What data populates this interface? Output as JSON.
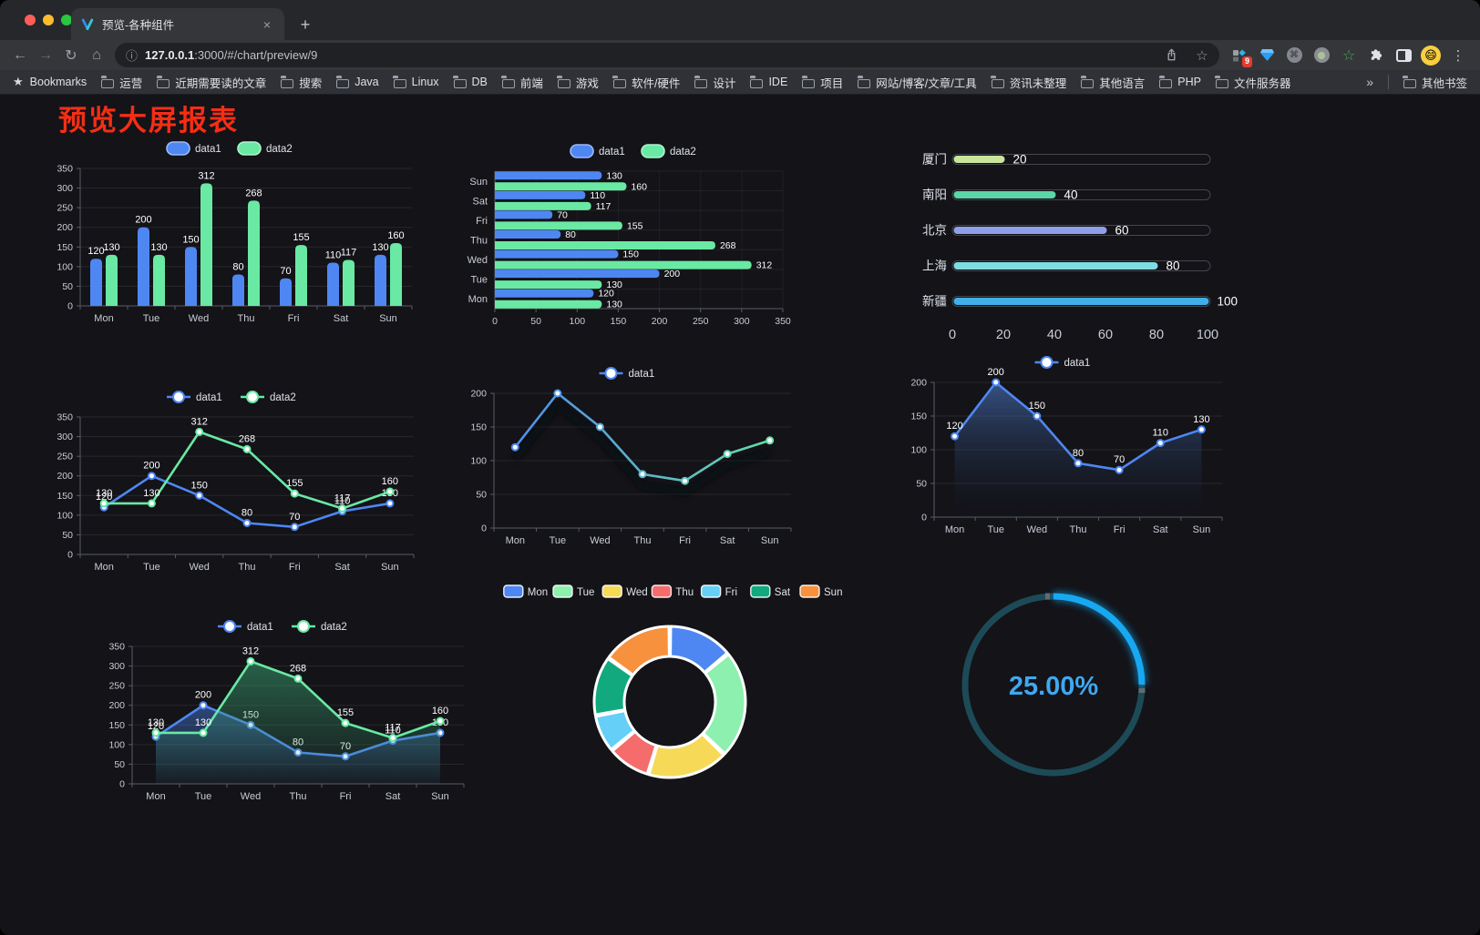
{
  "browser": {
    "traffic_lights": {
      "close": "#ff5f57",
      "minimize": "#febc2e",
      "zoom": "#28c840"
    },
    "tab": {
      "title": "预览-各种组件"
    },
    "icons": {
      "back": "←",
      "forward": "→",
      "reload": "↻",
      "home": "⌂",
      "info": "ⓘ",
      "star": "☆",
      "kebab": "⋮",
      "close": "×",
      "new_tab": "+",
      "overflow": "»",
      "bookmark_star": "★",
      "command": "⌘",
      "green_star": "☆",
      "avatar_emoji": "😄"
    },
    "nav": {
      "url_host": "127.0.0.1",
      "url_rest": ":3000/#/chart/preview/9"
    },
    "actions": {
      "extension_badge": "9"
    },
    "bookmarks": {
      "label": "Bookmarks",
      "folders": [
        "运营",
        "近期需要读的文章",
        "搜索",
        "Java",
        "Linux",
        "DB",
        "前端",
        "游戏",
        "软件/硬件",
        "设计",
        "IDE",
        "项目",
        "网站/博客/文章/工具",
        "资讯未整理",
        "其他语言",
        "PHP",
        "文件服务器"
      ],
      "other": "其他书签"
    }
  },
  "page": {
    "title": "预览大屏报表",
    "title_color": "#F52E14",
    "background": "#131318"
  },
  "theme": {
    "data1_color": "#4E87F2",
    "data1_border": "#9BB9F8",
    "data2_color": "#69E9A3",
    "data2_border": "#ACF4CD",
    "axis_line": "#5a5d66",
    "axis_label": "#c9cdd6",
    "grid_line": "rgba(255,255,255,0.09)",
    "value_label": "#ffffff"
  },
  "chart_data": [
    {
      "id": "bar-vertical",
      "type": "bar",
      "legend": [
        "data1",
        "data2"
      ],
      "categories": [
        "Mon",
        "Tue",
        "Wed",
        "Thu",
        "Fri",
        "Sat",
        "Sun"
      ],
      "series": [
        {
          "name": "data1",
          "color": "#4E87F2",
          "border": "#9BB9F8",
          "values": [
            120,
            200,
            150,
            80,
            70,
            110,
            130
          ]
        },
        {
          "name": "data2",
          "color": "#69E9A3",
          "border": "#ACF4CD",
          "values": [
            130,
            130,
            312,
            268,
            155,
            117,
            160
          ]
        }
      ],
      "ylim": [
        0,
        350
      ],
      "yticks": [
        0,
        50,
        100,
        150,
        200,
        250,
        300,
        350
      ],
      "value_labels": true
    },
    {
      "id": "bar-horizontal",
      "type": "bar-horizontal",
      "legend": [
        "data1",
        "data2"
      ],
      "categories": [
        "Mon",
        "Tue",
        "Wed",
        "Thu",
        "Fri",
        "Sat",
        "Sun"
      ],
      "series": [
        {
          "name": "data1",
          "color": "#4E87F2",
          "border": "#9BB9F8",
          "values": [
            120,
            200,
            150,
            80,
            70,
            110,
            130
          ]
        },
        {
          "name": "data2",
          "color": "#69E9A3",
          "border": "#ACF4CD",
          "values": [
            130,
            130,
            312,
            268,
            155,
            117,
            160
          ]
        }
      ],
      "xlim": [
        0,
        350
      ],
      "xticks": [
        0,
        50,
        100,
        150,
        200,
        250,
        300,
        350
      ],
      "value_labels": true
    },
    {
      "id": "progress-bars",
      "type": "progress",
      "categories": [
        "厦门",
        "南阳",
        "北京",
        "上海",
        "新疆"
      ],
      "values": [
        20,
        40,
        60,
        80,
        100
      ],
      "colors": [
        "#C9E59B",
        "#5BD6A7",
        "#8F9FE8",
        "#7EDDE3",
        "#41AEE8"
      ],
      "xlim": [
        0,
        100
      ],
      "xticks": [
        0,
        20,
        40,
        60,
        80,
        100
      ]
    },
    {
      "id": "line-two-series",
      "type": "line",
      "legend": [
        "data1",
        "data2"
      ],
      "categories": [
        "Mon",
        "Tue",
        "Wed",
        "Thu",
        "Fri",
        "Sat",
        "Sun"
      ],
      "series": [
        {
          "name": "data1",
          "color": "#4E87F2",
          "values": [
            120,
            200,
            150,
            80,
            70,
            110,
            130
          ]
        },
        {
          "name": "data2",
          "color": "#69E9A3",
          "values": [
            130,
            130,
            312,
            268,
            155,
            117,
            160
          ]
        }
      ],
      "ylim": [
        0,
        350
      ],
      "yticks": [
        0,
        50,
        100,
        150,
        200,
        250,
        300,
        350
      ],
      "value_labels": true,
      "area": false
    },
    {
      "id": "line-gradient",
      "type": "line-gradient",
      "legend": [
        "data1"
      ],
      "categories": [
        "Mon",
        "Tue",
        "Wed",
        "Thu",
        "Fri",
        "Sat",
        "Sun"
      ],
      "series": [
        {
          "name": "data1",
          "values": [
            120,
            200,
            150,
            80,
            70,
            110,
            130
          ]
        }
      ],
      "gradient": [
        "#4E87F2",
        "#67E0A3"
      ],
      "ylim": [
        0,
        200
      ],
      "yticks": [
        0,
        50,
        100,
        150,
        200
      ],
      "value_labels": false,
      "shadow": true
    },
    {
      "id": "line-area-single",
      "type": "line",
      "legend": [
        "data1"
      ],
      "categories": [
        "Mon",
        "Tue",
        "Wed",
        "Thu",
        "Fri",
        "Sat",
        "Sun"
      ],
      "series": [
        {
          "name": "data1",
          "color": "#4E87F2",
          "fill": [
            "rgba(84,134,222,0.55)",
            "rgba(20,26,40,0.05)"
          ],
          "values": [
            120,
            200,
            150,
            80,
            70,
            110,
            130
          ]
        }
      ],
      "ylim": [
        0,
        200
      ],
      "yticks": [
        0,
        50,
        100,
        150,
        200
      ],
      "value_labels": true,
      "area": true
    },
    {
      "id": "line-area-two",
      "type": "line",
      "legend": [
        "data1",
        "data2"
      ],
      "categories": [
        "Mon",
        "Tue",
        "Wed",
        "Thu",
        "Fri",
        "Sat",
        "Sun"
      ],
      "series": [
        {
          "name": "data1",
          "color": "#4E87F2",
          "fill": [
            "rgba(78,135,242,0.45)",
            "rgba(78,135,242,0.03)"
          ],
          "values": [
            120,
            200,
            150,
            80,
            70,
            110,
            130
          ]
        },
        {
          "name": "data2",
          "color": "#69E9A3",
          "fill": [
            "rgba(58,160,112,0.55)",
            "rgba(58,160,112,0.04)"
          ],
          "values": [
            130,
            130,
            312,
            268,
            155,
            117,
            160
          ]
        }
      ],
      "ylim": [
        0,
        350
      ],
      "yticks": [
        0,
        50,
        100,
        150,
        200,
        250,
        300,
        350
      ],
      "value_labels": true,
      "area": true
    },
    {
      "id": "donut",
      "type": "donut",
      "categories": [
        "Mon",
        "Tue",
        "Wed",
        "Thu",
        "Fri",
        "Sat",
        "Sun"
      ],
      "values": [
        120,
        200,
        150,
        80,
        70,
        110,
        130
      ],
      "colors": [
        "#4E87F2",
        "#8DF0AE",
        "#F7D958",
        "#F56C6C",
        "#66CFF7",
        "#12A97E",
        "#F7913E"
      ]
    },
    {
      "id": "gauge",
      "type": "gauge",
      "percent": 25,
      "label": "25.00%",
      "color": "#17A8F2",
      "track": "#1D4A57",
      "text_color": "#3FA8F0"
    }
  ]
}
